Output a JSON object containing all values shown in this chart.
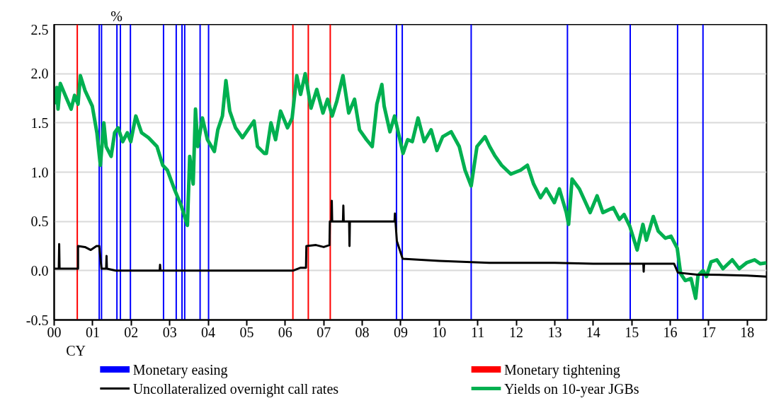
{
  "chart_data": {
    "type": "line",
    "xlabel": "CY",
    "ylabel": "%",
    "xlim": [
      0,
      18.5
    ],
    "ylim": [
      -0.5,
      2.5
    ],
    "xticks": [
      {
        "value": 0,
        "label": "00"
      },
      {
        "value": 1,
        "label": "01"
      },
      {
        "value": 2,
        "label": "02"
      },
      {
        "value": 3,
        "label": "03"
      },
      {
        "value": 4,
        "label": "04"
      },
      {
        "value": 5,
        "label": "05"
      },
      {
        "value": 6,
        "label": "06"
      },
      {
        "value": 7,
        "label": "07"
      },
      {
        "value": 8,
        "label": "08"
      },
      {
        "value": 9,
        "label": "09"
      },
      {
        "value": 10,
        "label": "10"
      },
      {
        "value": 11,
        "label": "11"
      },
      {
        "value": 12,
        "label": "12"
      },
      {
        "value": 13,
        "label": "13"
      },
      {
        "value": 14,
        "label": "14"
      },
      {
        "value": 15,
        "label": "15"
      },
      {
        "value": 16,
        "label": "16"
      },
      {
        "value": 17,
        "label": "17"
      },
      {
        "value": 18,
        "label": "18"
      }
    ],
    "yticks": [
      {
        "value": -0.5,
        "label": "-0.5"
      },
      {
        "value": 0,
        "label": "0.0"
      },
      {
        "value": 0.5,
        "label": "0.5"
      },
      {
        "value": 1,
        "label": "1.0"
      },
      {
        "value": 1.5,
        "label": "1.5"
      },
      {
        "value": 2,
        "label": "2.0"
      },
      {
        "value": 2.5,
        "label": "2.5"
      }
    ],
    "grid": "y",
    "legend": "bottom",
    "ref_lines": [
      {
        "axis": "x",
        "value": 1.17,
        "label": "Monetary easing",
        "color": "#0000ff"
      },
      {
        "axis": "x",
        "value": 0.6,
        "label": "Monetary tightening",
        "color": "#ff0000"
      },
      {
        "axis": "x",
        "value": 1.23,
        "color": "#0000ff"
      },
      {
        "axis": "x",
        "value": 1.63,
        "color": "#0000ff"
      },
      {
        "axis": "x",
        "value": 1.72,
        "color": "#0000ff"
      },
      {
        "axis": "x",
        "value": 1.98,
        "color": "#0000ff"
      },
      {
        "axis": "x",
        "value": 2.84,
        "color": "#0000ff"
      },
      {
        "axis": "x",
        "value": 3.17,
        "color": "#0000ff"
      },
      {
        "axis": "x",
        "value": 3.32,
        "color": "#0000ff"
      },
      {
        "axis": "x",
        "value": 3.39,
        "color": "#0000ff"
      },
      {
        "axis": "x",
        "value": 3.79,
        "color": "#0000ff"
      },
      {
        "axis": "x",
        "value": 4.01,
        "color": "#0000ff"
      },
      {
        "axis": "x",
        "value": 6.2,
        "color": "#ff0000"
      },
      {
        "axis": "x",
        "value": 6.6,
        "color": "#ff0000"
      },
      {
        "axis": "x",
        "value": 7.17,
        "color": "#ff0000"
      },
      {
        "axis": "x",
        "value": 8.89,
        "color": "#0000ff"
      },
      {
        "axis": "x",
        "value": 9.04,
        "color": "#0000ff"
      },
      {
        "axis": "x",
        "value": 10.83,
        "color": "#0000ff"
      },
      {
        "axis": "x",
        "value": 13.33,
        "color": "#0000ff"
      },
      {
        "axis": "x",
        "value": 14.96,
        "color": "#0000ff"
      },
      {
        "axis": "x",
        "value": 16.19,
        "color": "#0000ff"
      },
      {
        "axis": "x",
        "value": 16.85,
        "color": "#0000ff"
      }
    ],
    "series": [
      {
        "name": "Uncollateralized overnight call rates",
        "color": "#000000",
        "x": [
          0,
          0.12,
          0.13,
          0.14,
          0.62,
          0.62,
          0.8,
          0.95,
          1.1,
          1.17,
          1.2,
          1.23,
          1.35,
          1.36,
          1.37,
          1.6,
          2.74,
          2.75,
          2.76,
          4,
          5,
          6.2,
          6.4,
          6.54,
          6.55,
          6.8,
          7.0,
          7.15,
          7.16,
          7.2,
          7.21,
          7.22,
          7.5,
          7.51,
          7.52,
          7.66,
          7.67,
          7.68,
          8.2,
          8.84,
          8.85,
          8.9,
          9.05,
          10,
          11.3,
          12,
          13,
          14,
          15,
          15.3,
          15.31,
          15.32,
          16.1,
          16.2,
          16.7,
          17,
          18,
          18.5
        ],
        "values": [
          0.02,
          0.02,
          0.27,
          0.02,
          0.02,
          0.25,
          0.24,
          0.21,
          0.25,
          0.25,
          0.13,
          0.02,
          0.02,
          0.15,
          0.02,
          0.0,
          0.0,
          0.06,
          0.0,
          0.0,
          0.0,
          0.0,
          0.03,
          0.03,
          0.25,
          0.26,
          0.24,
          0.26,
          0.5,
          0.5,
          0.71,
          0.5,
          0.5,
          0.66,
          0.5,
          0.5,
          0.25,
          0.5,
          0.5,
          0.5,
          0.58,
          0.3,
          0.12,
          0.1,
          0.08,
          0.08,
          0.08,
          0.07,
          0.07,
          0.07,
          -0.01,
          0.07,
          0.07,
          -0.02,
          -0.04,
          -0.04,
          -0.05,
          -0.06
        ]
      },
      {
        "name": "Yields on 10-year JGBs",
        "color": "#00b050",
        "x": [
          0,
          0.07,
          0.1,
          0.16,
          0.32,
          0.44,
          0.53,
          0.62,
          0.68,
          0.8,
          0.99,
          1.11,
          1.2,
          1.29,
          1.35,
          1.48,
          1.57,
          1.66,
          1.78,
          1.9,
          1.99,
          2.12,
          2.27,
          2.45,
          2.67,
          2.82,
          2.94,
          3.12,
          3.3,
          3.46,
          3.52,
          3.61,
          3.67,
          3.73,
          3.85,
          3.98,
          4.16,
          4.25,
          4.37,
          4.46,
          4.56,
          4.71,
          4.89,
          5.19,
          5.28,
          5.46,
          5.51,
          5.63,
          5.75,
          5.88,
          6.06,
          6.18,
          6.3,
          6.4,
          6.52,
          6.67,
          6.82,
          6.98,
          7.1,
          7.22,
          7.34,
          7.5,
          7.65,
          7.8,
          7.93,
          8.11,
          8.26,
          8.38,
          8.51,
          8.57,
          8.72,
          8.84,
          9.06,
          9.18,
          9.3,
          9.45,
          9.61,
          9.79,
          9.94,
          10.09,
          10.31,
          10.52,
          10.67,
          10.83,
          10.98,
          11.19,
          11.31,
          11.44,
          11.62,
          11.86,
          12.11,
          12.29,
          12.45,
          12.63,
          12.78,
          12.99,
          13.12,
          13.3,
          13.36,
          13.45,
          13.64,
          13.92,
          14.1,
          14.25,
          14.52,
          14.68,
          14.8,
          14.95,
          15.14,
          15.29,
          15.38,
          15.56,
          15.69,
          15.87,
          16.02,
          16.18,
          16.27,
          16.39,
          16.54,
          16.66,
          16.72,
          16.85,
          16.94,
          17.06,
          17.21,
          17.37,
          17.61,
          17.79,
          17.98,
          18.19,
          18.34,
          18.5
        ],
        "values": [
          1.69,
          1.86,
          1.64,
          1.9,
          1.75,
          1.64,
          1.78,
          1.69,
          1.98,
          1.83,
          1.67,
          1.4,
          1.07,
          1.5,
          1.26,
          1.16,
          1.4,
          1.45,
          1.31,
          1.4,
          1.31,
          1.57,
          1.4,
          1.35,
          1.26,
          1.07,
          1.02,
          0.83,
          0.66,
          0.46,
          1.16,
          0.88,
          1.64,
          1.26,
          1.55,
          1.33,
          1.21,
          1.43,
          1.57,
          1.93,
          1.62,
          1.45,
          1.35,
          1.52,
          1.26,
          1.19,
          1.19,
          1.5,
          1.33,
          1.62,
          1.45,
          1.55,
          1.98,
          1.79,
          2.0,
          1.65,
          1.84,
          1.6,
          1.74,
          1.57,
          1.72,
          1.98,
          1.6,
          1.74,
          1.43,
          1.33,
          1.26,
          1.69,
          1.89,
          1.67,
          1.41,
          1.57,
          1.19,
          1.33,
          1.31,
          1.55,
          1.31,
          1.43,
          1.22,
          1.36,
          1.41,
          1.26,
          1.02,
          0.86,
          1.26,
          1.36,
          1.26,
          1.17,
          1.07,
          0.98,
          1.02,
          1.07,
          0.88,
          0.74,
          0.83,
          0.69,
          0.83,
          0.59,
          0.47,
          0.93,
          0.83,
          0.59,
          0.76,
          0.59,
          0.64,
          0.52,
          0.57,
          0.45,
          0.21,
          0.47,
          0.31,
          0.55,
          0.4,
          0.33,
          0.35,
          0.23,
          -0.03,
          -0.1,
          -0.08,
          -0.28,
          -0.05,
          0.0,
          -0.06,
          0.09,
          0.11,
          0.02,
          0.11,
          0.02,
          0.08,
          0.11,
          0.07,
          0.08
        ]
      }
    ]
  }
}
